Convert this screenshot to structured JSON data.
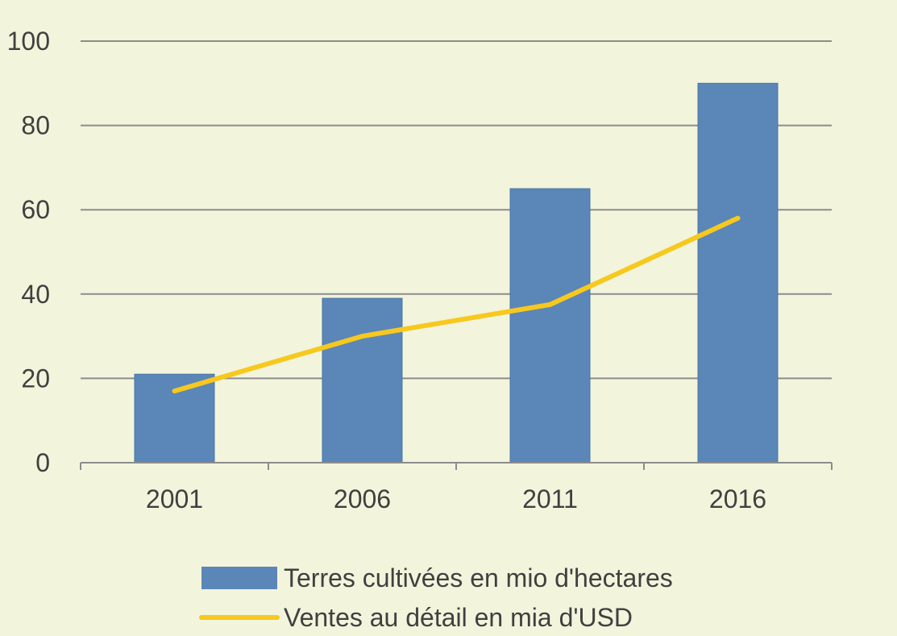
{
  "colors": {
    "background": "#f2f5dc",
    "bar": "#5b86b8",
    "line": "#f7c81e",
    "grid": "#8c8c8c",
    "text": "#404040"
  },
  "chart_data": {
    "type": "bar",
    "title": "",
    "xlabel": "",
    "ylabel": "",
    "categories": [
      "2001",
      "2006",
      "2011",
      "2016"
    ],
    "ylim": [
      0,
      100
    ],
    "yticks": [
      0,
      20,
      40,
      60,
      80,
      100
    ],
    "grid": true,
    "legend_position": "bottom",
    "series": [
      {
        "name": "Terres cultivées en mio d'hectares",
        "type": "bar",
        "values": [
          21,
          39,
          65,
          90
        ]
      },
      {
        "name": "Ventes au détail en mia d'USD",
        "type": "line",
        "values": [
          17,
          30,
          37.5,
          58
        ]
      }
    ]
  }
}
